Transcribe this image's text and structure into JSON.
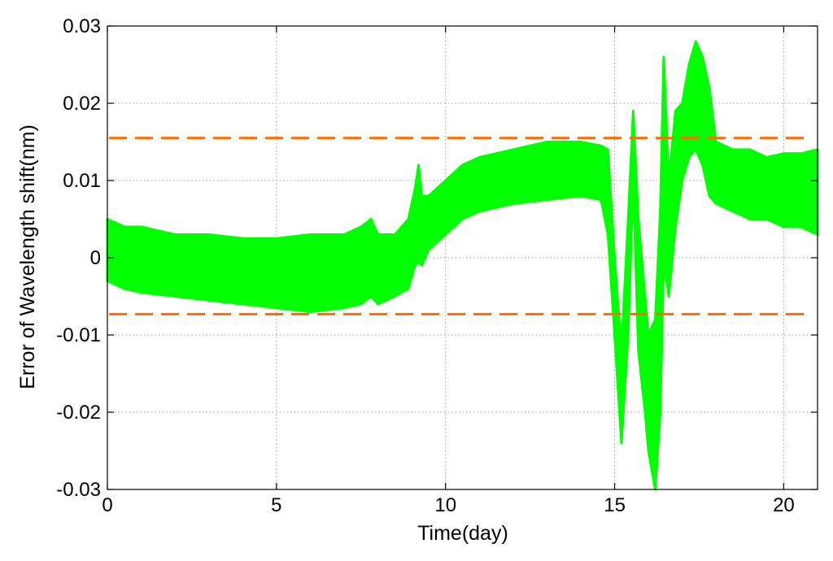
{
  "chart_data": {
    "type": "line",
    "xlabel": "Time(day)",
    "ylabel": "Error of Wavelength shift(nm)",
    "xlim": [
      0,
      21
    ],
    "ylim": [
      -0.03,
      0.03
    ],
    "xticks": [
      0,
      5,
      10,
      15,
      20
    ],
    "yticks": [
      -0.03,
      -0.02,
      -0.01,
      0,
      0.01,
      0.02,
      0.03
    ],
    "xtick_labels": [
      "0",
      "5",
      "10",
      "15",
      "20"
    ],
    "ytick_labels": [
      "-0.03",
      "-0.02",
      "-0.01",
      "0",
      "0.01",
      "0.02",
      "0.03"
    ],
    "grid": true,
    "colors": {
      "series": "#00ff00",
      "limits": "#ff6a00"
    },
    "series": [
      {
        "style": "band",
        "x": [
          0,
          0.5,
          1,
          2,
          3,
          4,
          5,
          6,
          7,
          7.5,
          7.8,
          8,
          8.5,
          8.9,
          9.1,
          9.2,
          9.3,
          9.5,
          10,
          10.5,
          11,
          12,
          13,
          14,
          14.6,
          14.8,
          15.0,
          15.2,
          15.4,
          15.55,
          15.7,
          15.9,
          16.0,
          16.2,
          16.35,
          16.45,
          16.6,
          16.8,
          17.0,
          17.2,
          17.4,
          17.6,
          17.8,
          18.0,
          18.5,
          19,
          19.5,
          20,
          20.5,
          21
        ],
        "y_min": [
          -0.003,
          -0.004,
          -0.0045,
          -0.005,
          -0.0055,
          -0.006,
          -0.0065,
          -0.007,
          -0.0065,
          -0.006,
          -0.005,
          -0.006,
          -0.005,
          -0.004,
          -0.001,
          -0.0005,
          -0.001,
          0.001,
          0.003,
          0.005,
          0.006,
          0.007,
          0.0075,
          0.008,
          0.0075,
          0.003,
          -0.01,
          -0.024,
          -0.01,
          0.01,
          -0.012,
          -0.02,
          -0.025,
          -0.03,
          -0.02,
          0.0,
          -0.005,
          0.004,
          0.01,
          0.013,
          0.014,
          0.012,
          0.008,
          0.007,
          0.006,
          0.005,
          0.005,
          0.004,
          0.004,
          0.003
        ],
        "y_max": [
          0.005,
          0.004,
          0.004,
          0.003,
          0.003,
          0.0025,
          0.0025,
          0.003,
          0.003,
          0.004,
          0.005,
          0.003,
          0.003,
          0.005,
          0.009,
          0.012,
          0.008,
          0.008,
          0.01,
          0.012,
          0.013,
          0.014,
          0.015,
          0.015,
          0.0145,
          0.014,
          0.0,
          -0.012,
          0.005,
          0.019,
          0.005,
          -0.005,
          -0.01,
          -0.008,
          0.006,
          0.026,
          0.01,
          0.019,
          0.02,
          0.025,
          0.028,
          0.026,
          0.022,
          0.015,
          0.014,
          0.014,
          0.013,
          0.0135,
          0.0135,
          0.014
        ]
      }
    ],
    "reference_lines": [
      {
        "y": 0.0155,
        "style": "dashed"
      },
      {
        "y": -0.0073,
        "style": "dashed"
      }
    ]
  }
}
